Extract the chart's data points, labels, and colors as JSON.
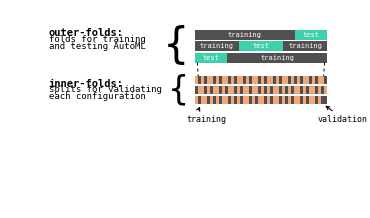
{
  "bg_color": "#ffffff",
  "dark_color": "#505050",
  "teal_color": "#3ecfad",
  "orange_color": "#f0a878",
  "outer_bars": [
    [
      [
        "#505050",
        0.755,
        "training"
      ],
      [
        "#3ecfad",
        0.245,
        "test"
      ]
    ],
    [
      [
        "#505050",
        0.33,
        "training"
      ],
      [
        "#3ecfad",
        0.34,
        "test"
      ],
      [
        "#505050",
        0.33,
        "training"
      ]
    ],
    [
      [
        "#3ecfad",
        0.245,
        "test"
      ],
      [
        "#505050",
        0.755,
        "training"
      ]
    ]
  ],
  "inner_pattern1": [
    1,
    0,
    1,
    0,
    1,
    1,
    0,
    1,
    0,
    1,
    1,
    0,
    1,
    0,
    1,
    1,
    0,
    1,
    0,
    1,
    1,
    0,
    1,
    0,
    1,
    1,
    0,
    1,
    0,
    1,
    1,
    0,
    1,
    0,
    1,
    0,
    1,
    1,
    0,
    1,
    0,
    1,
    1,
    0
  ],
  "inner_pattern2": [
    0,
    1,
    1,
    0,
    1,
    0,
    1,
    1,
    0,
    1,
    0,
    1,
    1,
    0,
    1,
    0,
    1,
    1,
    0,
    1,
    1,
    0,
    1,
    0,
    1,
    0,
    1,
    1,
    0,
    1,
    0,
    1,
    0,
    1,
    1,
    0,
    1,
    0,
    1,
    1,
    0,
    1,
    0,
    1
  ],
  "inner_pattern3": [
    1,
    0,
    1,
    1,
    0,
    1,
    0,
    1,
    0,
    1,
    1,
    0,
    1,
    0,
    1,
    0,
    1,
    1,
    0,
    1,
    0,
    1,
    1,
    0,
    1,
    0,
    1,
    1,
    0,
    1,
    0,
    1,
    0,
    1,
    1,
    0,
    1,
    0,
    1,
    1,
    0,
    1,
    0,
    0
  ],
  "text_outer_bold": "outer-folds:",
  "text_outer_sub1": "folds for training",
  "text_outer_sub2": "and testing AutoML",
  "text_inner_bold": "inner-folds:",
  "text_inner_sub1": "splits for validating",
  "text_inner_sub2": "each configuration",
  "label_training": "training",
  "label_validation": "validation"
}
